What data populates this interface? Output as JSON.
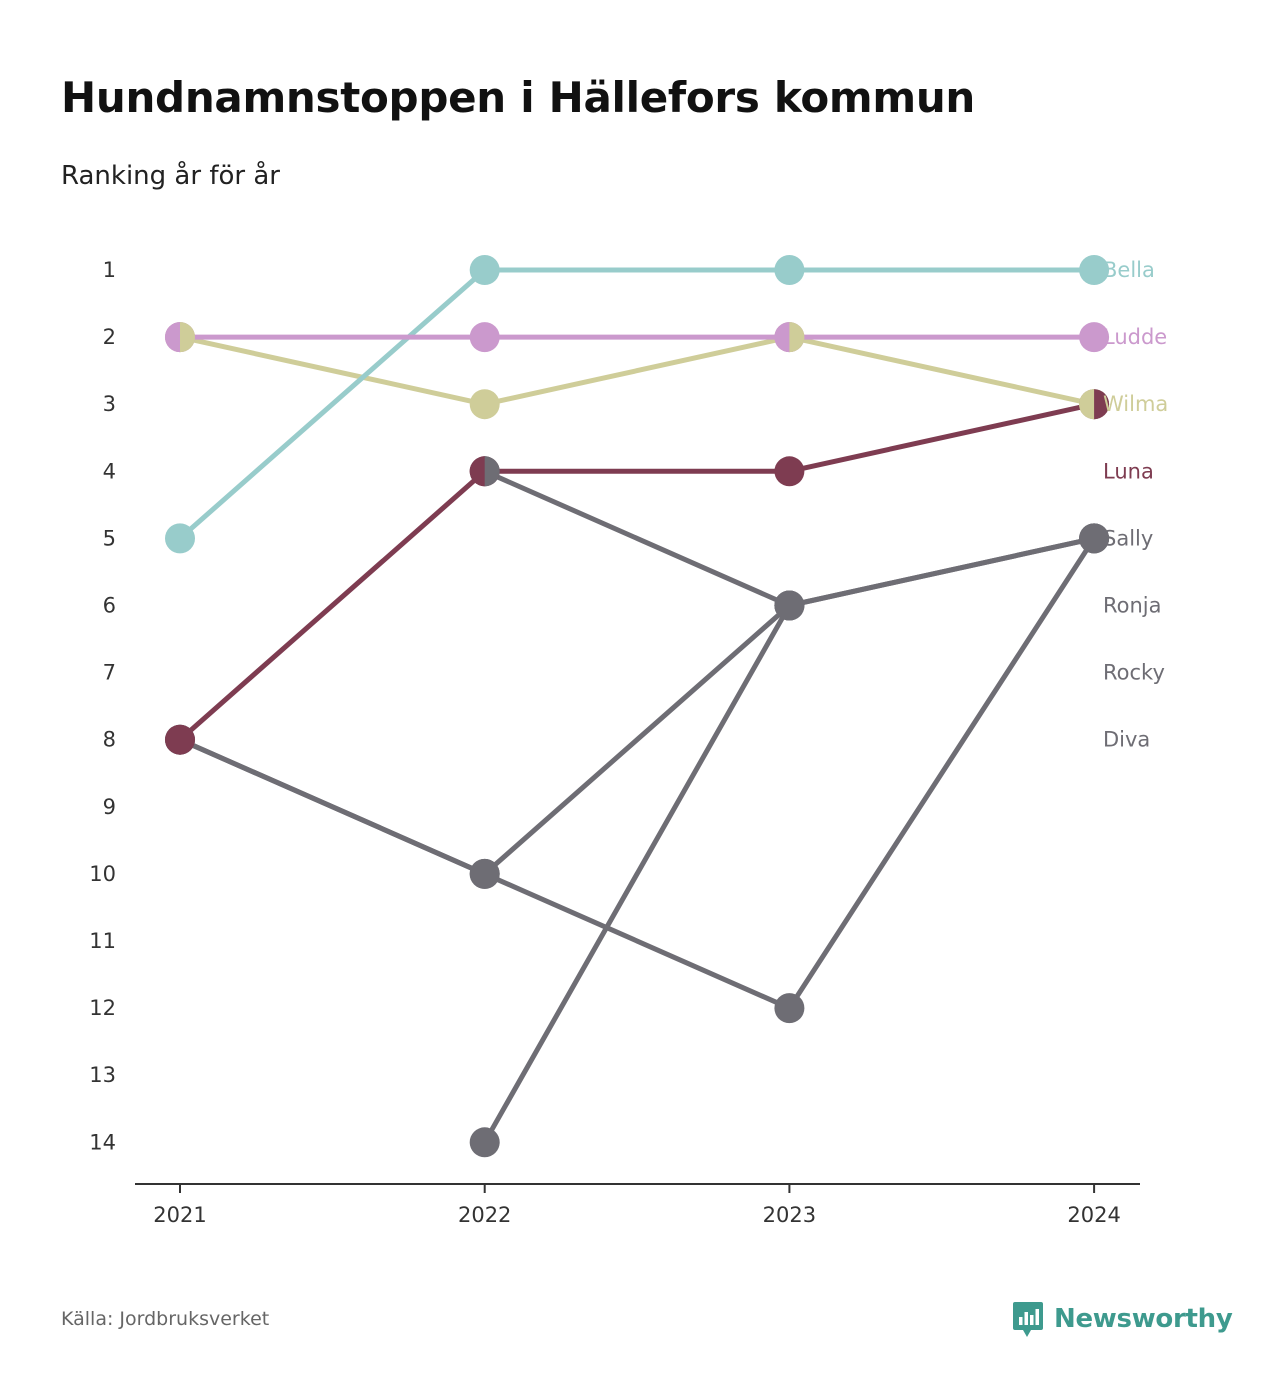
{
  "header": {
    "title": "Hundnamnstoppen i Hällefors kommun",
    "subtitle": "Ranking år för år"
  },
  "footer": {
    "source": "Källa: Jordbruksverket",
    "brand": "Newsworthy",
    "brand_icon": "newsworthy-logo-icon",
    "brand_color": "#3e9a8e"
  },
  "chart_data": {
    "type": "line",
    "title": "Hundnamnstoppen i Hällefors kommun",
    "subtitle": "Ranking år för år",
    "xlabel": "",
    "ylabel": "",
    "x": [
      "2021",
      "2022",
      "2023",
      "2024"
    ],
    "y_ticks": [
      1,
      2,
      3,
      4,
      5,
      6,
      7,
      8,
      9,
      10,
      11,
      12,
      13,
      14
    ],
    "y_range": [
      1,
      14
    ],
    "y_inverted": true,
    "grid": false,
    "legend": "direct labels at right end",
    "series": [
      {
        "name": "Diva",
        "color": "#6e6d74",
        "values": [
          8,
          10,
          6,
          null
        ]
      },
      {
        "name": "Rocky",
        "color": "#6e6d74",
        "values": [
          null,
          14,
          6,
          5
        ]
      },
      {
        "name": "Ronja",
        "color": "#6e6d74",
        "values": [
          8,
          10,
          12,
          5
        ]
      },
      {
        "name": "Sally",
        "color": "#6e6d74",
        "values": [
          null,
          4,
          6,
          5
        ]
      },
      {
        "name": "Luna",
        "color": "#7e3c51",
        "values": [
          8,
          4,
          4,
          3
        ]
      },
      {
        "name": "Wilma",
        "color": "#cfcd99",
        "values": [
          2,
          3,
          2,
          3
        ]
      },
      {
        "name": "Bella",
        "color": "#98cccb",
        "values": [
          5,
          1,
          1,
          1
        ]
      },
      {
        "name": "Ludde",
        "color": "#cb99cd",
        "values": [
          2,
          2,
          2,
          2
        ]
      }
    ],
    "labels": [
      {
        "name": "Bella",
        "rank": 1,
        "color": "#98cccb"
      },
      {
        "name": "Ludde",
        "rank": 2,
        "color": "#cb99cd"
      },
      {
        "name": "Wilma",
        "rank": 3,
        "color": "#cfcd99"
      },
      {
        "name": "Luna",
        "rank": 4,
        "color": "#7e3c51"
      },
      {
        "name": "Sally",
        "rank": 5,
        "color": "#6e6d74"
      },
      {
        "name": "Ronja",
        "rank": 6,
        "color": "#6e6d74"
      },
      {
        "name": "Rocky",
        "rank": 7,
        "color": "#6e6d74"
      },
      {
        "name": "Diva",
        "rank": 8,
        "color": "#6e6d74"
      }
    ],
    "split_markers": [
      {
        "x": "2021",
        "rank": 2,
        "left_color": "#cb99cd",
        "right_color": "#cfcd99"
      },
      {
        "x": "2022",
        "rank": 4,
        "left_color": "#7e3c51",
        "right_color": "#6e6d74"
      },
      {
        "x": "2023",
        "rank": 2,
        "left_color": "#cb99cd",
        "right_color": "#cfcd99"
      },
      {
        "x": "2024",
        "rank": 3,
        "left_color": "#cfcd99",
        "right_color": "#7e3c51"
      }
    ]
  }
}
